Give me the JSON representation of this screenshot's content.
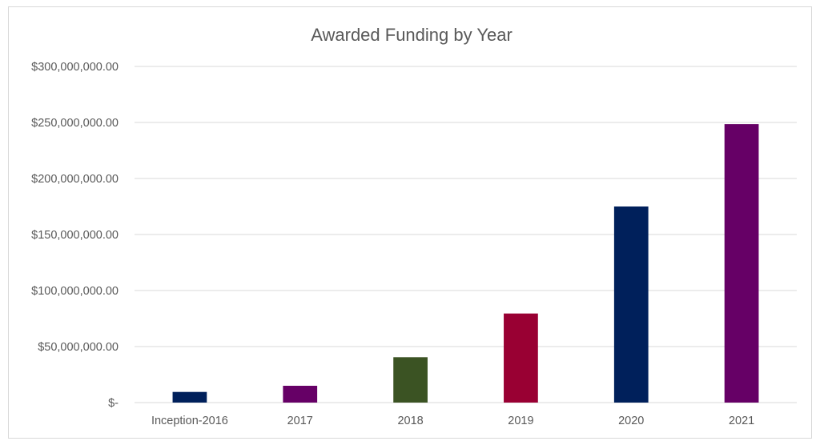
{
  "chart_data": {
    "type": "bar",
    "title": "Awarded Funding by Year",
    "xlabel": "",
    "ylabel": "",
    "categories": [
      "Inception-2016",
      "2017",
      "2018",
      "2019",
      "2020",
      "2021"
    ],
    "values": [
      9500000,
      15000000,
      40500000,
      79500000,
      175000000,
      248500000
    ],
    "bar_colors": [
      "#00205b",
      "#660066",
      "#3b5323",
      "#990033",
      "#00205b",
      "#660066"
    ],
    "ylim": [
      0,
      300000000
    ],
    "y_ticks": [
      0,
      50000000,
      100000000,
      150000000,
      200000000,
      250000000,
      300000000
    ],
    "y_tick_labels": [
      "$-",
      "$50,000,000.00",
      "$100,000,000.00",
      "$150,000,000.00",
      "$200,000,000.00",
      "$250,000,000.00",
      "$300,000,000.00"
    ],
    "grid": true,
    "legend": "none",
    "colors": {
      "gridline": "#d9d9d9",
      "text": "#595959",
      "frame": "#d9d9d9"
    }
  }
}
